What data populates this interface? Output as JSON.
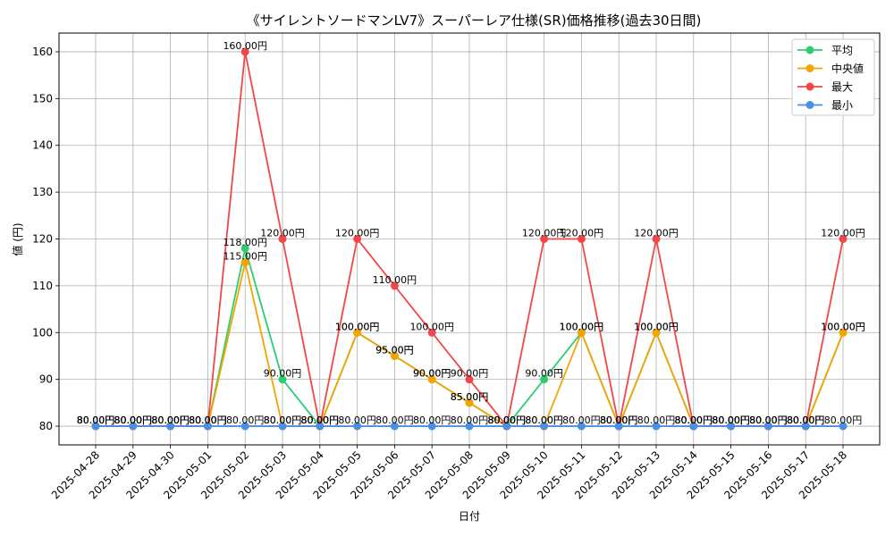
{
  "chart_data": {
    "type": "line",
    "title": "《サイレントソードマンLV7》スーパーレア仕様(SR)価格推移(過去30日間)",
    "xlabel": "日付",
    "ylabel": "値 (円)",
    "ylim": [
      76,
      164
    ],
    "yticks": [
      80,
      90,
      100,
      110,
      120,
      130,
      140,
      150,
      160
    ],
    "grid": true,
    "legend_position": "top-right",
    "categories": [
      "2025-04-28",
      "2025-04-29",
      "2025-04-30",
      "2025-05-01",
      "2025-05-02",
      "2025-05-03",
      "2025-05-04",
      "2025-05-05",
      "2025-05-06",
      "2025-05-07",
      "2025-05-08",
      "2025-05-09",
      "2025-05-10",
      "2025-05-11",
      "2025-05-12",
      "2025-05-13",
      "2025-05-14",
      "2025-05-15",
      "2025-05-16",
      "2025-05-17",
      "2025-05-18"
    ],
    "series": [
      {
        "name": "平均",
        "color": "#2ecc71",
        "values": [
          80,
          80,
          80,
          80,
          118,
          90,
          80,
          100,
          95,
          90,
          85,
          80,
          90,
          100,
          80,
          100,
          80,
          80,
          80,
          80,
          100
        ]
      },
      {
        "name": "中央値",
        "color": "#f5a300",
        "values": [
          80,
          80,
          80,
          80,
          115,
          80,
          80,
          100,
          95,
          90,
          85,
          80,
          80,
          100,
          80,
          100,
          80,
          80,
          80,
          80,
          100
        ]
      },
      {
        "name": "最大",
        "color": "#f0474a",
        "values": [
          80,
          80,
          80,
          80,
          160,
          120,
          80,
          120,
          110,
          100,
          90,
          80,
          120,
          120,
          80,
          120,
          80,
          80,
          80,
          80,
          120
        ]
      },
      {
        "name": "最小",
        "color": "#4a90e2",
        "values": [
          80,
          80,
          80,
          80,
          80,
          80,
          80,
          80,
          80,
          80,
          80,
          80,
          80,
          80,
          80,
          80,
          80,
          80,
          80,
          80,
          80
        ]
      }
    ],
    "label_suffix": "円"
  }
}
